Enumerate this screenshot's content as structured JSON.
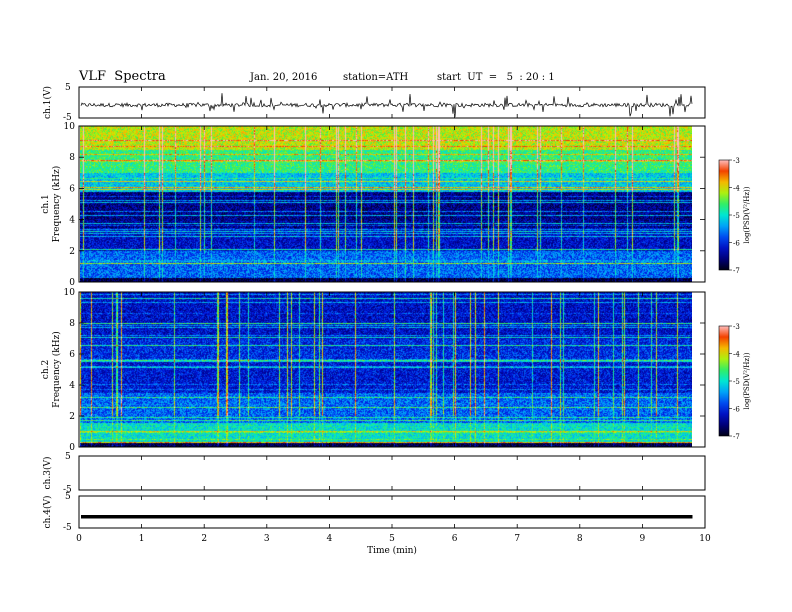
{
  "header": {
    "title": "VLF  Spectra",
    "date": "Jan. 20, 2016",
    "station": "station=ATH",
    "start": "start  UT  =   5  : 20 : 1"
  },
  "chart_data": [
    {
      "type": "line",
      "ylabel": "ch.1(V)",
      "ylim": [
        -5,
        5
      ],
      "yticks": [
        "5",
        "-5"
      ],
      "description_value_range": [
        -2.5,
        0.8
      ]
    },
    {
      "type": "heatmap",
      "ylabel_channel": "ch.1",
      "ylabel": "Frequency  (kHz)",
      "ylim": [
        0,
        10
      ],
      "yticks": [
        "0",
        "2",
        "4",
        "6",
        "8",
        "10"
      ],
      "colorbar": {
        "label": "log(PSD(V²/Hz))",
        "range": [
          -7,
          -3
        ],
        "ticks": [
          "-3",
          "-4",
          "-5",
          "-6",
          "-7"
        ]
      }
    },
    {
      "type": "heatmap",
      "ylabel_channel": "ch.2",
      "ylabel": "Frequency  (kHz)",
      "ylim": [
        0,
        10
      ],
      "yticks": [
        "0",
        "2",
        "4",
        "6",
        "8",
        "10"
      ],
      "colorbar": {
        "label": "log(PSD(V²/Hz))",
        "range": [
          -7,
          -3
        ],
        "ticks": [
          "-3",
          "-4",
          "-5",
          "-6",
          "-7"
        ]
      }
    },
    {
      "type": "line",
      "ylabel": "ch.3(V)",
      "ylim": [
        -5,
        5
      ],
      "yticks": [
        "5",
        "-5"
      ]
    },
    {
      "type": "line",
      "ylabel": "ch.4(V)",
      "ylim": [
        -5,
        5
      ],
      "yticks": [
        "5",
        "-5"
      ],
      "level": -1.5
    }
  ],
  "xaxis": {
    "label": "Time  (min)",
    "range": [
      0,
      10
    ],
    "ticks": [
      "0",
      "1",
      "2",
      "3",
      "4",
      "5",
      "6",
      "7",
      "8",
      "9",
      "10"
    ],
    "data_end": 9.8
  }
}
